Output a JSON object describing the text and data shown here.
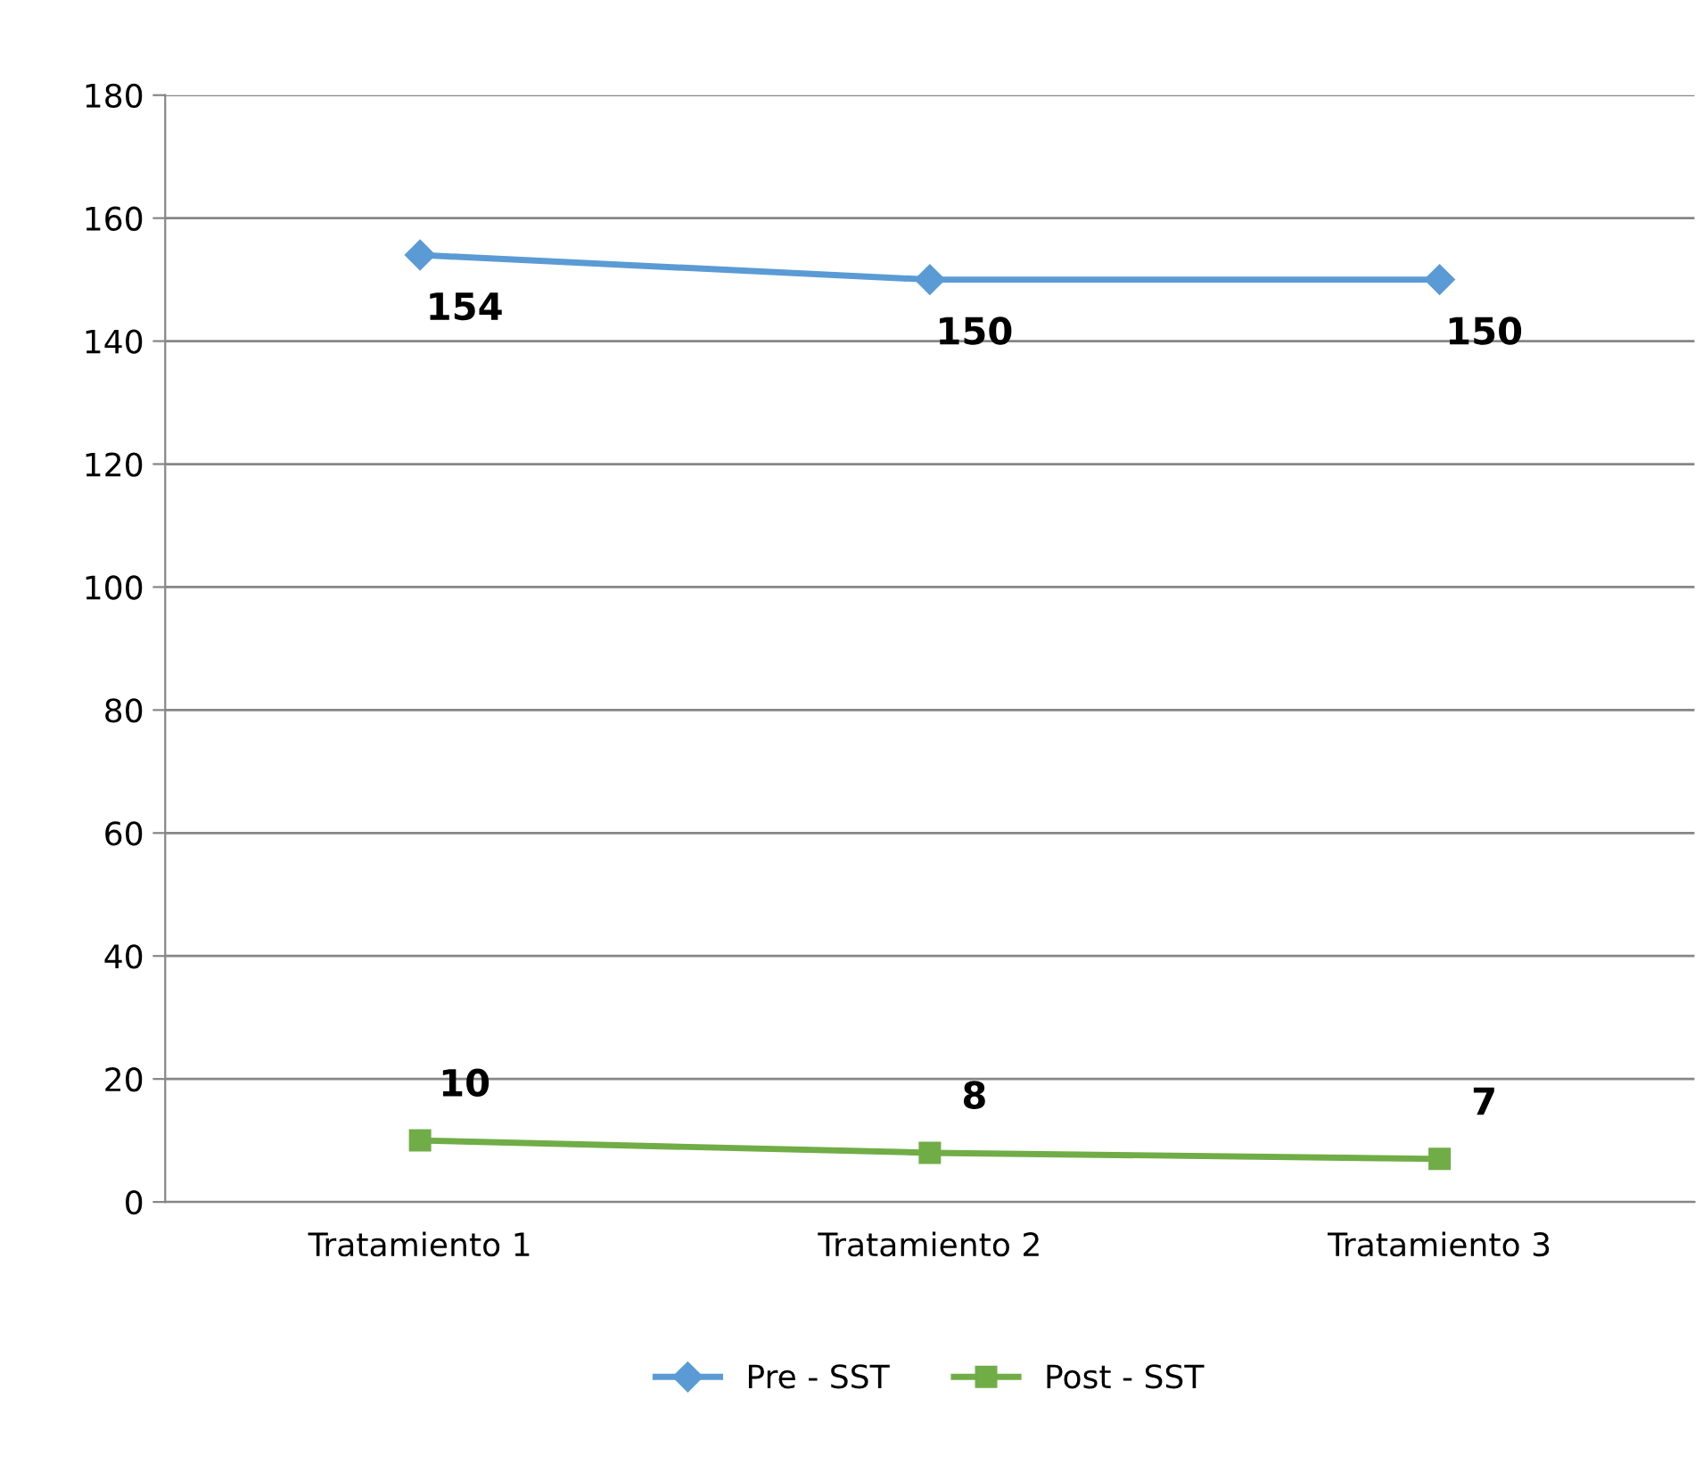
{
  "chart_data": {
    "type": "line",
    "categories": [
      "Tratamiento 1",
      "Tratamiento 2",
      "Tratamiento 3"
    ],
    "series": [
      {
        "name": "Pre - SST",
        "color": "#5b9bd5",
        "marker": "diamond",
        "values": [
          154,
          150,
          150
        ]
      },
      {
        "name": "Post - SST",
        "color": "#70ad47",
        "marker": "square",
        "values": [
          10,
          8,
          7
        ]
      }
    ],
    "ylim": [
      0,
      180
    ],
    "yticks": [
      0,
      20,
      40,
      60,
      80,
      100,
      120,
      140,
      160,
      180
    ],
    "grid": "y",
    "legend": "bottom",
    "data_labels": true
  }
}
